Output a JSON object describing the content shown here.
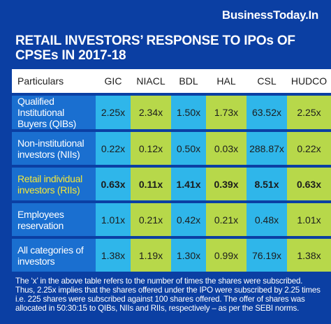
{
  "brand": "BusinessToday.In",
  "title": {
    "line1": "RETAIL INVESTORS’ RESPONSE TO IPOs OF",
    "line2": "CPSEs IN 2017-18"
  },
  "table": {
    "header": [
      "Particulars",
      "GIC",
      "NIACL",
      "BDL",
      "HAL",
      "CSL",
      "HUDCO"
    ],
    "rows": [
      {
        "label": [
          "Qualified Institutional",
          "Buyers (QIBs)"
        ],
        "values": [
          "2.25x",
          "2.34x",
          "1.50x",
          "1.73x",
          "63.52x",
          "2.25x"
        ]
      },
      {
        "label": [
          "Non-institutional",
          "investors (NIIs)"
        ],
        "values": [
          "0.22x",
          "0.12x",
          "0.50x",
          "0.03x",
          "288.87x",
          "0.22x"
        ]
      },
      {
        "label": [
          "Retail individual",
          "investors (RIIs)"
        ],
        "values": [
          "0.63x",
          "0.11x",
          "1.41x",
          "0.39x",
          "8.51x",
          "0.63x"
        ]
      },
      {
        "label": [
          "Employees",
          "reservation"
        ],
        "values": [
          "1.01x",
          "0.21x",
          "0.42x",
          "0.21x",
          "0.48x",
          "1.01x"
        ]
      },
      {
        "label": [
          "All categories of",
          "investors"
        ],
        "values": [
          "1.38x",
          "1.19x",
          "1.30x",
          "0.99x",
          "76.19x",
          "1.38x"
        ]
      }
    ]
  },
  "note": "The ‘x’ in the above table refers to the number of times the shares were subscribed. Thus, 2.25x implies that the shares offered under the IPO were subscribed by 2.25 times i.e. 225 shares were subscribed against 100 shares offered. The offer of shares was allocated in 50:30:15 to QIBs, NIIs and RIIs, respectively – as per the SEBI norms.",
  "colors": {
    "background": "#0b3fa3",
    "label_cell": "#1a6fd0",
    "column_blue": "#2fb6ea",
    "column_green": "#b7d84a",
    "highlight_text": "#f4e838"
  }
}
